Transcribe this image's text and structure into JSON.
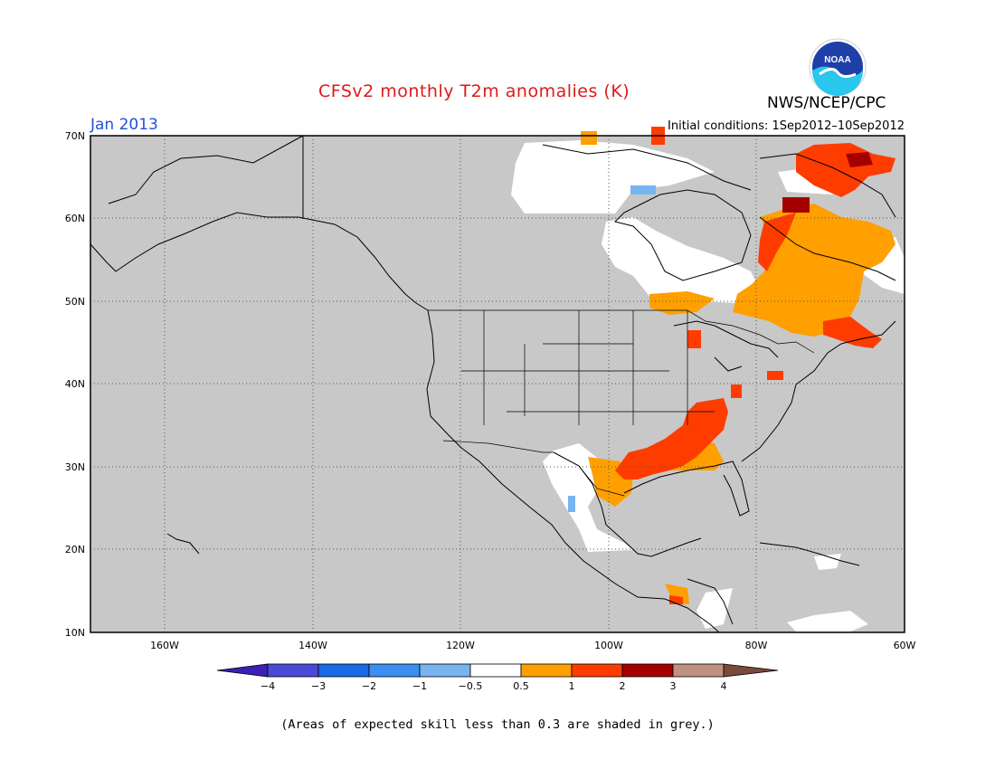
{
  "title": "CFSv2 monthly T2m anomalies (K)",
  "agency": "NWS/NCEP/CPC",
  "logo_text": "NOAA",
  "valid_month": "Jan 2013",
  "initial_conditions": "Initial conditions: 1Sep2012–10Sep2012",
  "footnote": "(Areas of expected skill less than 0.3 are shaded in grey.)",
  "colors": {
    "low_skill_grey": "#c8c8c8",
    "neutral": "#ffffff",
    "anom_0_5_to_1": "#ff9f00",
    "anom_1_to_2": "#fe3c00",
    "anom_2_to_3": "#a50000",
    "anom_neg_0_5": "#78b4f0",
    "coast": "#000000"
  },
  "map": {
    "lat_labels": [
      "70N",
      "60N",
      "50N",
      "40N",
      "30N",
      "20N",
      "10N"
    ],
    "lon_labels": [
      "160W",
      "140W",
      "120W",
      "100W",
      "80W",
      "60W"
    ]
  },
  "colorbar": {
    "labels": [
      "−4",
      "−3",
      "−2",
      "−1",
      "−0.5",
      "0.5",
      "1",
      "2",
      "3",
      "4"
    ],
    "colors": [
      "#3b1fb6",
      "#4a4ad6",
      "#1a6ae6",
      "#3c8ff0",
      "#78b4f0",
      "#ffffff",
      "#ff9f00",
      "#fe3c00",
      "#a50000",
      "#c09080",
      "#7a4a3a"
    ]
  }
}
